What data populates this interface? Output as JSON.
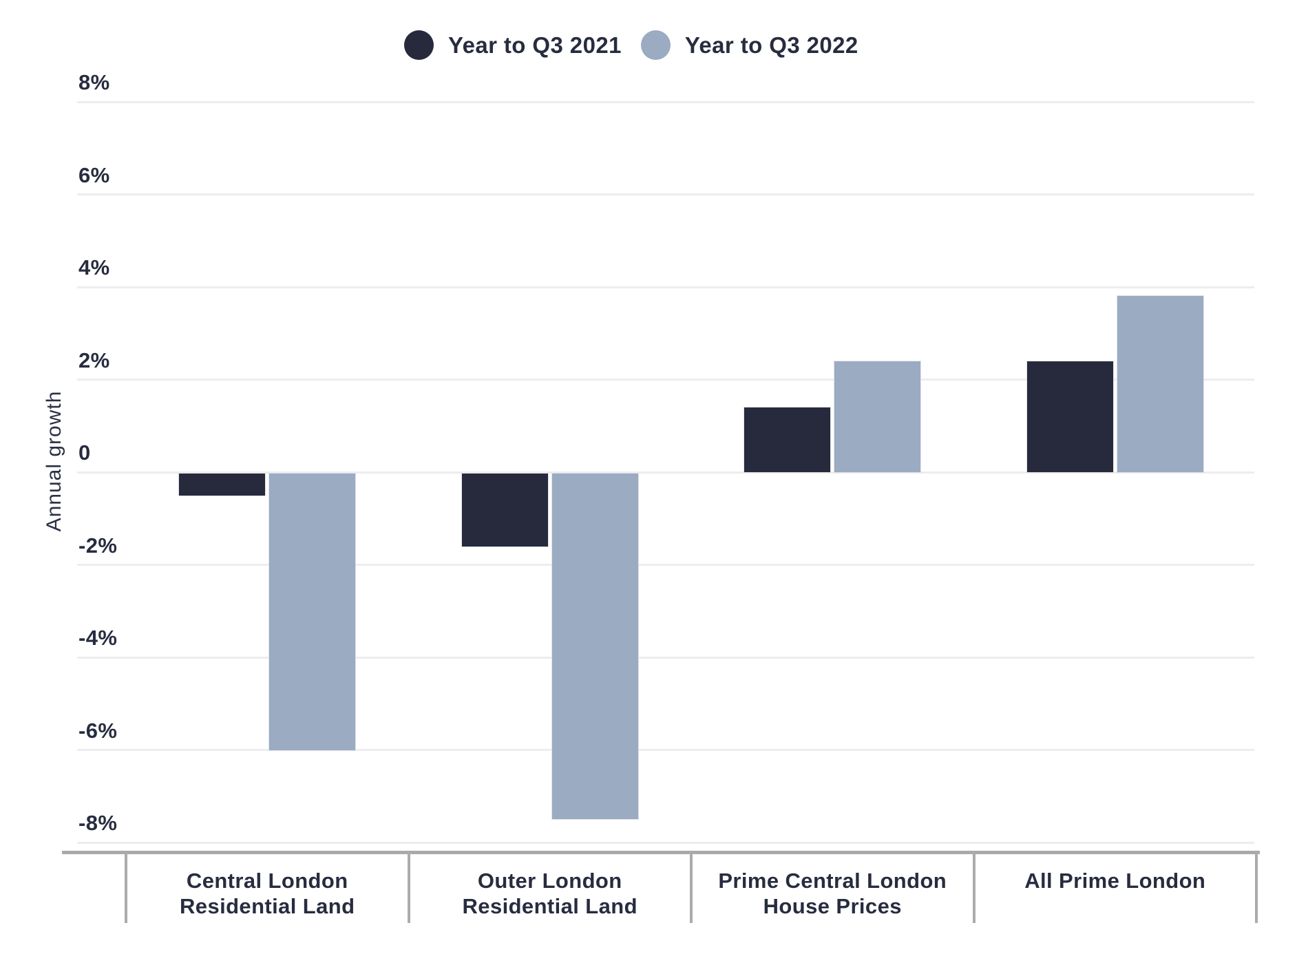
{
  "legend": {
    "items": [
      {
        "label": "Year to Q3 2021",
        "color": "#262a3c"
      },
      {
        "label": "Year to Q3 2022",
        "color": "#9aabc2"
      }
    ]
  },
  "chart_data": {
    "type": "bar",
    "title": "",
    "ylabel": "Annual growth",
    "xlabel": "",
    "categories": [
      "Central London Residential Land",
      "Outer London Residential Land",
      "Prime Central London House Prices",
      "All Prime London"
    ],
    "category_lines": [
      [
        "Central London",
        "Residential Land"
      ],
      [
        "Outer London",
        "Residential Land"
      ],
      [
        "Prime Central London",
        "House Prices"
      ],
      [
        "All Prime London"
      ]
    ],
    "series": [
      {
        "name": "Year to Q3 2021",
        "color": "#262a3c",
        "values": [
          -0.5,
          -1.6,
          1.4,
          2.4
        ]
      },
      {
        "name": "Year to Q3 2022",
        "color": "#9aabc2",
        "values": [
          -6.0,
          -7.5,
          2.4,
          3.8
        ]
      }
    ],
    "ylim": [
      -8,
      8
    ],
    "ytick_step": 2,
    "ytick_labels": [
      "8%",
      "6%",
      "4%",
      "2%",
      "0",
      "-2%",
      "-4%",
      "-6%",
      "-8%"
    ],
    "grid": true,
    "legend_position": "top"
  },
  "colors": {
    "text": "#272c3f",
    "gridline": "#ededef",
    "axis_line": "#a9a9a9",
    "background": "#ffffff",
    "series_dark": "#262a3c",
    "series_light": "#9aabc2"
  }
}
